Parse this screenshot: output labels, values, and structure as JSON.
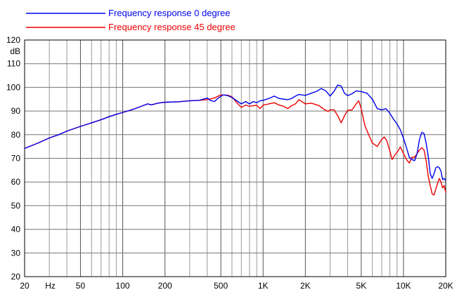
{
  "chart_data": {
    "type": "line",
    "x_scale": "log",
    "xlim": [
      20,
      20000
    ],
    "ylim": [
      20,
      120
    ],
    "ylabel_unit": "dB",
    "xlabel_unit": "Hz",
    "grid": true,
    "legend_position": "top-left",
    "x_ticks": [
      {
        "value": 20,
        "label": "20"
      },
      {
        "value": 50,
        "label": "50"
      },
      {
        "value": 100,
        "label": "100"
      },
      {
        "value": 200,
        "label": "200"
      },
      {
        "value": 500,
        "label": "500"
      },
      {
        "value": 1000,
        "label": "1K"
      },
      {
        "value": 2000,
        "label": "2K"
      },
      {
        "value": 5000,
        "label": "5K"
      },
      {
        "value": 10000,
        "label": "10K"
      },
      {
        "value": 20000,
        "label": "20K"
      }
    ],
    "y_ticks": [
      20,
      30,
      40,
      50,
      60,
      70,
      80,
      90,
      100,
      110,
      120
    ],
    "series": [
      {
        "name": "Frequency response 0 degree",
        "color": "#0000ee",
        "points": [
          [
            20,
            74.2
          ],
          [
            25,
            76.5
          ],
          [
            30,
            78.6
          ],
          [
            35,
            80.0
          ],
          [
            40,
            81.5
          ],
          [
            50,
            83.5
          ],
          [
            60,
            85.0
          ],
          [
            70,
            86.3
          ],
          [
            80,
            87.6
          ],
          [
            90,
            88.6
          ],
          [
            100,
            89.4
          ],
          [
            120,
            90.8
          ],
          [
            140,
            92.3
          ],
          [
            150,
            93.0
          ],
          [
            160,
            92.6
          ],
          [
            180,
            93.4
          ],
          [
            200,
            93.7
          ],
          [
            250,
            93.9
          ],
          [
            300,
            94.3
          ],
          [
            350,
            94.5
          ],
          [
            400,
            95.5
          ],
          [
            420,
            94.5
          ],
          [
            450,
            94.0
          ],
          [
            480,
            95.5
          ],
          [
            520,
            96.8
          ],
          [
            560,
            96.5
          ],
          [
            600,
            95.7
          ],
          [
            650,
            94.3
          ],
          [
            700,
            93.0
          ],
          [
            750,
            94.0
          ],
          [
            800,
            93.0
          ],
          [
            850,
            94.0
          ],
          [
            900,
            93.5
          ],
          [
            950,
            94.3
          ],
          [
            1000,
            94.5
          ],
          [
            1100,
            95.3
          ],
          [
            1200,
            96.3
          ],
          [
            1300,
            95.3
          ],
          [
            1400,
            95.0
          ],
          [
            1500,
            94.8
          ],
          [
            1600,
            95.3
          ],
          [
            1700,
            96.3
          ],
          [
            1800,
            97.0
          ],
          [
            2000,
            96.6
          ],
          [
            2200,
            97.5
          ],
          [
            2400,
            98.3
          ],
          [
            2600,
            99.5
          ],
          [
            2800,
            98.5
          ],
          [
            3000,
            96.3
          ],
          [
            3200,
            98.3
          ],
          [
            3400,
            101.0
          ],
          [
            3600,
            100.5
          ],
          [
            3800,
            97.5
          ],
          [
            4000,
            96.5
          ],
          [
            4300,
            97.3
          ],
          [
            4600,
            98.5
          ],
          [
            5000,
            98.2
          ],
          [
            5500,
            97.5
          ],
          [
            6000,
            95.0
          ],
          [
            6500,
            91.0
          ],
          [
            7000,
            90.5
          ],
          [
            7500,
            91.0
          ],
          [
            8000,
            89.0
          ],
          [
            8500,
            86.5
          ],
          [
            9000,
            84.5
          ],
          [
            9500,
            82.0
          ],
          [
            10000,
            78.5
          ],
          [
            10500,
            74.5
          ],
          [
            11000,
            70.5
          ],
          [
            11500,
            69.5
          ],
          [
            12000,
            69.0
          ],
          [
            12500,
            72.0
          ],
          [
            13000,
            78.0
          ],
          [
            13500,
            81.0
          ],
          [
            14000,
            80.5
          ],
          [
            14500,
            76.5
          ],
          [
            15000,
            71.0
          ],
          [
            15500,
            63.5
          ],
          [
            16000,
            61.5
          ],
          [
            16500,
            63.5
          ],
          [
            17000,
            66.0
          ],
          [
            17500,
            66.5
          ],
          [
            18000,
            66.0
          ],
          [
            18500,
            64.5
          ],
          [
            19000,
            61.0
          ],
          [
            19500,
            61.5
          ],
          [
            20000,
            60.5
          ]
        ]
      },
      {
        "name": "Frequency response 45 degree",
        "color": "#ee0000",
        "points": [
          [
            20,
            74.2
          ],
          [
            25,
            76.5
          ],
          [
            30,
            78.6
          ],
          [
            35,
            80.0
          ],
          [
            40,
            81.5
          ],
          [
            50,
            83.5
          ],
          [
            60,
            85.0
          ],
          [
            70,
            86.3
          ],
          [
            80,
            87.6
          ],
          [
            90,
            88.6
          ],
          [
            100,
            89.4
          ],
          [
            120,
            90.8
          ],
          [
            140,
            92.3
          ],
          [
            150,
            93.0
          ],
          [
            160,
            92.6
          ],
          [
            180,
            93.4
          ],
          [
            200,
            93.7
          ],
          [
            250,
            93.9
          ],
          [
            300,
            94.3
          ],
          [
            350,
            94.5
          ],
          [
            400,
            94.8
          ],
          [
            450,
            95.5
          ],
          [
            500,
            96.8
          ],
          [
            560,
            96.7
          ],
          [
            600,
            96.0
          ],
          [
            650,
            93.5
          ],
          [
            700,
            91.5
          ],
          [
            750,
            92.5
          ],
          [
            800,
            92.0
          ],
          [
            850,
            92.2
          ],
          [
            900,
            92.5
          ],
          [
            950,
            91.0
          ],
          [
            1000,
            92.5
          ],
          [
            1100,
            93.0
          ],
          [
            1200,
            93.5
          ],
          [
            1300,
            92.5
          ],
          [
            1400,
            92.0
          ],
          [
            1500,
            91.0
          ],
          [
            1600,
            92.3
          ],
          [
            1700,
            93.0
          ],
          [
            1800,
            94.8
          ],
          [
            2000,
            93.0
          ],
          [
            2200,
            93.3
          ],
          [
            2500,
            92.3
          ],
          [
            2700,
            90.8
          ],
          [
            2900,
            89.8
          ],
          [
            3000,
            90.5
          ],
          [
            3200,
            90.5
          ],
          [
            3400,
            88.0
          ],
          [
            3600,
            85.0
          ],
          [
            3800,
            88.0
          ],
          [
            4000,
            90.3
          ],
          [
            4300,
            90.5
          ],
          [
            4600,
            93.0
          ],
          [
            4800,
            94.3
          ],
          [
            5000,
            91.0
          ],
          [
            5300,
            84.0
          ],
          [
            5600,
            80.5
          ],
          [
            6000,
            76.5
          ],
          [
            6500,
            75.0
          ],
          [
            7000,
            78.0
          ],
          [
            7300,
            79.0
          ],
          [
            7600,
            77.5
          ],
          [
            8000,
            73.0
          ],
          [
            8300,
            69.5
          ],
          [
            8700,
            71.5
          ],
          [
            9000,
            72.5
          ],
          [
            9500,
            74.8
          ],
          [
            10000,
            72.0
          ],
          [
            10500,
            69.5
          ],
          [
            11000,
            68.0
          ],
          [
            11500,
            70.5
          ],
          [
            12000,
            70.5
          ],
          [
            12500,
            72.0
          ],
          [
            13000,
            73.5
          ],
          [
            13500,
            74.5
          ],
          [
            14000,
            73.5
          ],
          [
            14500,
            69.0
          ],
          [
            15000,
            62.5
          ],
          [
            15500,
            58.5
          ],
          [
            16000,
            55.0
          ],
          [
            16500,
            54.5
          ],
          [
            17000,
            57.0
          ],
          [
            17500,
            59.5
          ],
          [
            18000,
            61.5
          ],
          [
            18500,
            60.0
          ],
          [
            19000,
            57.5
          ],
          [
            19500,
            58.5
          ],
          [
            20000,
            55.5
          ]
        ]
      }
    ]
  }
}
